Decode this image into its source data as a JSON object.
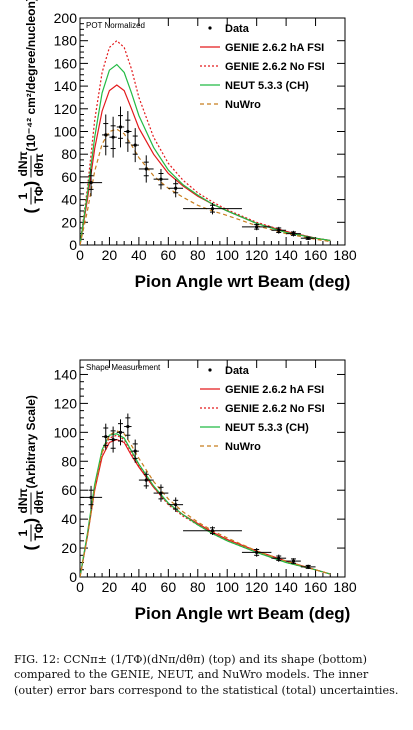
{
  "chart_data": [
    {
      "type": "line",
      "title": "",
      "annotation": "POT Normalized",
      "xlabel": "Pion Angle wrt Beam (deg)",
      "ylabel_left": "(",
      "ylabel_frac_top": "1",
      "ylabel_frac_bottom": "TΦ",
      "ylabel_right": ")",
      "ylabel_dn_top": "dNπ",
      "ylabel_dn_bottom": "dθπ",
      "ylabel_units": "(10⁻⁴² cm²/degree/nucleon)",
      "xlim": [
        0,
        180
      ],
      "ylim": [
        0,
        200
      ],
      "xticks": [
        "0",
        "20",
        "40",
        "60",
        "80",
        "100",
        "120",
        "140",
        "160",
        "180"
      ],
      "yticks": [
        "0",
        "20",
        "40",
        "60",
        "80",
        "100",
        "120",
        "140",
        "160",
        "180",
        "200"
      ],
      "legend_position": "top-right",
      "data_points": {
        "name": "Data",
        "x": [
          7.5,
          17.5,
          22.5,
          27.5,
          32.5,
          37.5,
          45,
          55,
          65,
          90,
          120,
          135,
          145,
          155
        ],
        "y": [
          55,
          97,
          95,
          104,
          100,
          88,
          67,
          58,
          50,
          32,
          16,
          13,
          10,
          6
        ],
        "xerr": [
          7.5,
          2.5,
          2.5,
          2.5,
          2.5,
          2.5,
          5,
          5,
          5,
          20,
          10,
          5,
          5,
          5
        ],
        "yerr_stat": [
          6,
          10,
          10,
          10,
          10,
          8,
          6,
          5,
          4,
          3,
          2,
          2,
          1.5,
          1
        ],
        "yerr_total": [
          12,
          18,
          18,
          18,
          18,
          15,
          12,
          9,
          8,
          5,
          3,
          3,
          2.5,
          1.5
        ]
      },
      "series": [
        {
          "name": "GENIE 2.6.2 hA FSI",
          "color": "#e31a1c",
          "dash": "solid",
          "x": [
            0,
            5,
            10,
            15,
            20,
            25,
            30,
            35,
            40,
            50,
            60,
            70,
            80,
            90,
            100,
            120,
            140,
            160,
            170
          ],
          "y": [
            0,
            40,
            85,
            118,
            136,
            141,
            136,
            120,
            103,
            80,
            63,
            52,
            43,
            36,
            30,
            19,
            12,
            6,
            4
          ]
        },
        {
          "name": "GENIE 2.6.2 No FSI",
          "color": "#e31a1c",
          "dash": "dotted",
          "x": [
            0,
            5,
            10,
            15,
            20,
            25,
            30,
            35,
            40,
            50,
            60,
            70,
            80,
            90,
            100,
            120,
            140,
            160,
            170
          ],
          "y": [
            0,
            50,
            110,
            152,
            174,
            180,
            174,
            155,
            130,
            95,
            72,
            57,
            46,
            38,
            31,
            20,
            12,
            6,
            4
          ]
        },
        {
          "name": "NEUT 5.3.3 (CH)",
          "color": "#22bb44",
          "dash": "solid",
          "x": [
            0,
            5,
            10,
            15,
            20,
            25,
            30,
            35,
            40,
            50,
            60,
            70,
            80,
            90,
            100,
            120,
            140,
            160,
            170
          ],
          "y": [
            0,
            45,
            95,
            134,
            154,
            159,
            152,
            134,
            114,
            86,
            66,
            53,
            44,
            36,
            30,
            19,
            11,
            6,
            4
          ]
        },
        {
          "name": "NuWro",
          "color": "#c87d1e",
          "dash": "dashed",
          "x": [
            0,
            5,
            10,
            15,
            20,
            25,
            30,
            35,
            40,
            50,
            60,
            70,
            80,
            90,
            100,
            120,
            140,
            160,
            170
          ],
          "y": [
            0,
            30,
            65,
            89,
            100,
            102,
            98,
            88,
            77,
            61,
            50,
            42,
            35,
            30,
            26,
            17,
            10,
            5,
            3
          ]
        }
      ],
      "legend_data_label": "Data"
    },
    {
      "type": "line",
      "title": "",
      "annotation": "Shape Measurement",
      "xlabel": "Pion Angle wrt Beam (deg)",
      "ylabel_left": "(",
      "ylabel_frac_top": "1",
      "ylabel_frac_bottom": "TΦ",
      "ylabel_right": ")",
      "ylabel_dn_top": "dNπ",
      "ylabel_dn_bottom": "dθπ",
      "ylabel_units": "(Arbitrary Scale)",
      "xlim": [
        0,
        180
      ],
      "ylim": [
        0,
        150
      ],
      "xticks": [
        "0",
        "20",
        "40",
        "60",
        "80",
        "100",
        "120",
        "140",
        "160",
        "180"
      ],
      "yticks": [
        "0",
        "20",
        "40",
        "60",
        "80",
        "100",
        "120",
        "140"
      ],
      "legend_position": "top-right",
      "data_points": {
        "name": "Data",
        "x": [
          7.5,
          17.5,
          22.5,
          27.5,
          32.5,
          37.5,
          45,
          55,
          65,
          90,
          120,
          135,
          145,
          155
        ],
        "y": [
          55,
          97,
          95,
          100,
          104,
          87,
          67,
          58,
          50,
          32,
          17,
          13,
          11,
          7
        ],
        "xerr": [
          7.5,
          2.5,
          2.5,
          2.5,
          2.5,
          2.5,
          5,
          5,
          5,
          20,
          10,
          5,
          5,
          5
        ],
        "yerr_stat": [
          5,
          6,
          6,
          6,
          6,
          5,
          4,
          4,
          3,
          2,
          2,
          1.5,
          1.5,
          1
        ],
        "yerr_total": [
          8,
          9,
          9,
          9,
          9,
          8,
          6,
          6,
          5,
          3,
          3,
          2.5,
          2,
          1.5
        ]
      },
      "series": [
        {
          "name": "GENIE 2.6.2 hA FSI",
          "color": "#e31a1c",
          "dash": "solid",
          "x": [
            0,
            5,
            10,
            15,
            20,
            25,
            30,
            35,
            40,
            50,
            60,
            70,
            80,
            90,
            100,
            120,
            140,
            160,
            170
          ],
          "y": [
            0,
            28,
            60,
            83,
            93,
            95,
            93,
            84,
            76,
            62,
            51,
            43,
            37,
            31,
            26,
            18,
            11,
            5,
            2
          ]
        },
        {
          "name": "GENIE 2.6.2 No FSI",
          "color": "#e31a1c",
          "dash": "dotted",
          "x": [
            0,
            5,
            10,
            15,
            20,
            25,
            30,
            35,
            40,
            50,
            60,
            70,
            80,
            90,
            100,
            120,
            140,
            160,
            170
          ],
          "y": [
            0,
            29,
            62,
            86,
            96,
            98,
            95,
            86,
            77,
            62,
            50,
            42,
            36,
            30,
            25,
            17,
            10,
            5,
            2
          ]
        },
        {
          "name": "NEUT 5.3.3 (CH)",
          "color": "#22bb44",
          "dash": "solid",
          "x": [
            0,
            5,
            10,
            15,
            20,
            25,
            30,
            35,
            40,
            50,
            60,
            70,
            80,
            90,
            100,
            120,
            140,
            160,
            170
          ],
          "y": [
            0,
            30,
            64,
            88,
            98,
            99,
            96,
            87,
            78,
            63,
            51,
            43,
            36,
            30,
            25,
            17,
            10,
            5,
            2
          ]
        },
        {
          "name": "NuWro",
          "color": "#c87d1e",
          "dash": "dashed",
          "x": [
            0,
            5,
            10,
            15,
            20,
            25,
            30,
            35,
            40,
            50,
            60,
            70,
            80,
            90,
            100,
            120,
            140,
            160,
            170
          ],
          "y": [
            0,
            28,
            61,
            86,
            98,
            101,
            99,
            91,
            82,
            66,
            54,
            45,
            38,
            32,
            27,
            18,
            11,
            5,
            2
          ]
        }
      ],
      "legend_data_label": "Data"
    }
  ],
  "caption": {
    "text": "FIG. 12: CCNπ± (1/TΦ)(dNπ/dθπ) (top) and its shape (bottom) compared to the GENIE, NEUT, and NuWro models. The inner (outer) error bars correspond to the statistical (total) uncertainties."
  }
}
